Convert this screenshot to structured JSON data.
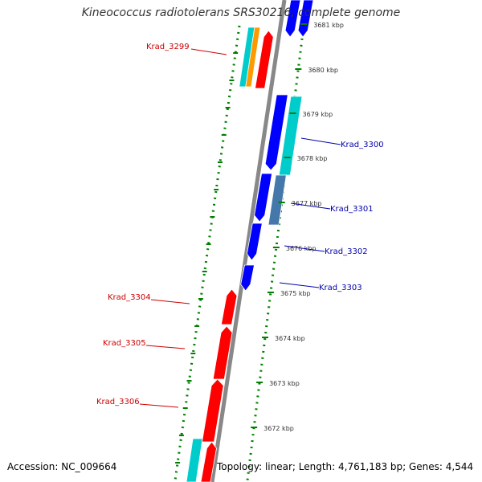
{
  "title": "Kineococcus radiotolerans SRS30216, complete genome",
  "footer": {
    "accession": "Accession: NC_009664",
    "stats": "Topology: linear; Length: 4,761,183 bp; Genes: 4,544"
  },
  "colors": {
    "forward_gene": "#ff0000",
    "reverse_gene": "#0000ff",
    "rna_gene": "#00cccc",
    "other_gene": "#ff9900",
    "pseudo_gene": "#4477aa",
    "backbone": "#888888",
    "ticks": "#008000"
  },
  "ticks": [
    "3672 kbp",
    "3673 kbp",
    "3674 kbp",
    "3675 kbp",
    "3676 kbp",
    "3677 kbp",
    "3678 kbp",
    "3679 kbp",
    "3680 kbp",
    "3681 kbp"
  ],
  "gene_labels": [
    {
      "id": "Krad_3299",
      "strand": "forward"
    },
    {
      "id": "Krad_3300",
      "strand": "reverse"
    },
    {
      "id": "Krad_3301",
      "strand": "reverse"
    },
    {
      "id": "Krad_3302",
      "strand": "reverse"
    },
    {
      "id": "Krad_3303",
      "strand": "reverse"
    },
    {
      "id": "Krad_3304",
      "strand": "forward"
    },
    {
      "id": "Krad_3305",
      "strand": "forward"
    },
    {
      "id": "Krad_3306",
      "strand": "forward"
    }
  ]
}
